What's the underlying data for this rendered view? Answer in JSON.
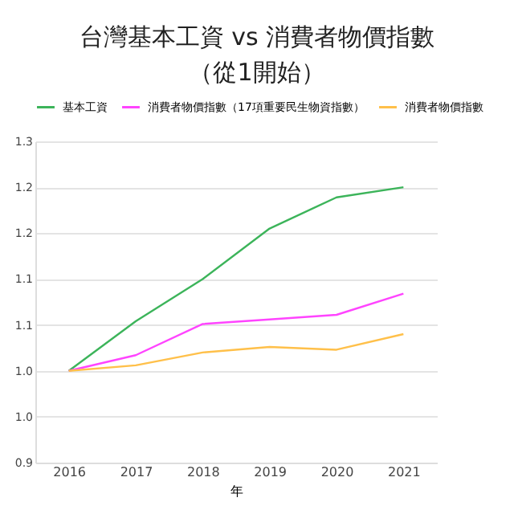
{
  "chart_data": {
    "type": "line",
    "title": "台灣基本工資 vs 消費者物價指數（從1開始）",
    "xlabel": "年",
    "categories": [
      "2016",
      "2017",
      "2018",
      "2019",
      "2020",
      "2021"
    ],
    "series": [
      {
        "name": "基本工資",
        "color": "#3cb45a",
        "values": [
          1.0,
          1.054,
          1.1,
          1.155,
          1.189,
          1.2
        ]
      },
      {
        "name": "消費者物價指數（17項重要民生物資指數）",
        "color": "#ff44ff",
        "values": [
          1.0,
          1.017,
          1.051,
          1.056,
          1.061,
          1.084
        ]
      },
      {
        "name": "消費者物價指數",
        "color": "#ffc04a",
        "values": [
          1.0,
          1.006,
          1.02,
          1.026,
          1.023,
          1.04
        ]
      }
    ],
    "ylim": [
      0.9,
      1.25
    ],
    "yticks": [
      {
        "value": 0.9,
        "label": "0.9"
      },
      {
        "value": 0.95,
        "label": "1.0"
      },
      {
        "value": 1.0,
        "label": "1.0"
      },
      {
        "value": 1.05,
        "label": "1.1"
      },
      {
        "value": 1.1,
        "label": "1.1"
      },
      {
        "value": 1.15,
        "label": "1.2"
      },
      {
        "value": 1.2,
        "label": "1.2"
      },
      {
        "value": 1.25,
        "label": "1.3"
      }
    ],
    "grid": "y",
    "legend": "top",
    "marker": "none",
    "line_style": "solid"
  }
}
